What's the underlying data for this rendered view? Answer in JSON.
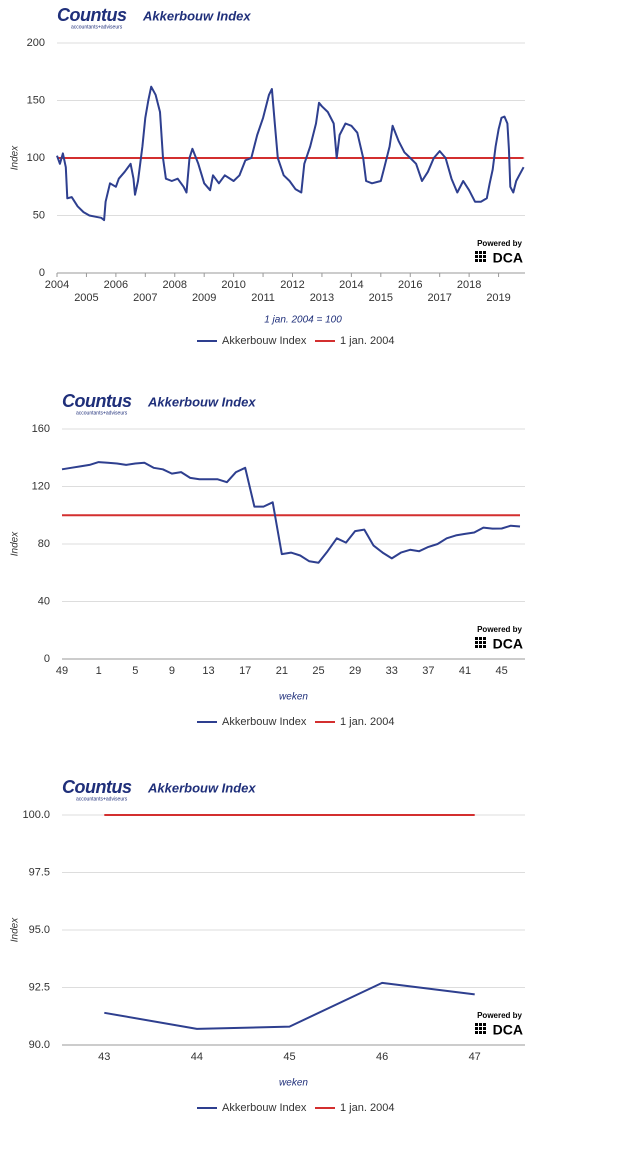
{
  "chart_data": [
    {
      "type": "line",
      "logo": "Countus",
      "logo_sub": "accountants+adviseurs",
      "title": "Akkerbouw Index",
      "powered_by": "Powered by",
      "brand": "DCA",
      "y_label": "Index",
      "x_label": "1 jan. 2004 = 100",
      "xlim": [
        2004,
        2020
      ],
      "xticks": [
        2004,
        2005,
        2006,
        2007,
        2008,
        2009,
        2010,
        2011,
        2012,
        2013,
        2014,
        2015,
        2016,
        2017,
        2018,
        2019
      ],
      "ylim": [
        0,
        200
      ],
      "yticks": [
        0,
        50,
        100,
        150,
        200
      ],
      "grid": true,
      "x": [
        2004.0,
        2004.1,
        2004.2,
        2004.3,
        2004.35,
        2004.5,
        2004.7,
        2004.9,
        2005.1,
        2005.3,
        2005.5,
        2005.6,
        2005.65,
        2005.8,
        2006.0,
        2006.1,
        2006.3,
        2006.5,
        2006.6,
        2006.65,
        2006.75,
        2006.9,
        2007.0,
        2007.1,
        2007.2,
        2007.35,
        2007.5,
        2007.6,
        2007.7,
        2007.9,
        2008.1,
        2008.3,
        2008.4,
        2008.5,
        2008.6,
        2008.8,
        2009.0,
        2009.2,
        2009.3,
        2009.5,
        2009.7,
        2010.0,
        2010.2,
        2010.4,
        2010.6,
        2010.8,
        2011.0,
        2011.2,
        2011.3,
        2011.4,
        2011.5,
        2011.7,
        2011.9,
        2012.1,
        2012.3,
        2012.4,
        2012.6,
        2012.8,
        2012.9,
        2013.0,
        2013.2,
        2013.4,
        2013.5,
        2013.6,
        2013.8,
        2014.0,
        2014.2,
        2014.4,
        2014.5,
        2014.7,
        2015.0,
        2015.1,
        2015.3,
        2015.4,
        2015.6,
        2015.8,
        2016.0,
        2016.2,
        2016.4,
        2016.6,
        2016.8,
        2017.0,
        2017.2,
        2017.4,
        2017.6,
        2017.8,
        2018.0,
        2018.2,
        2018.4,
        2018.6,
        2018.7,
        2018.8,
        2018.9,
        2019.0,
        2019.1,
        2019.2,
        2019.3,
        2019.35,
        2019.4,
        2019.5,
        2019.6,
        2019.7,
        2019.85
      ],
      "series": [
        {
          "name": "Akkerbouw Index",
          "color": "#2e3f8f",
          "values": [
            102,
            95,
            104,
            92,
            65,
            66,
            58,
            53,
            50,
            49,
            48,
            46,
            62,
            78,
            75,
            82,
            88,
            95,
            82,
            68,
            80,
            110,
            135,
            150,
            162,
            155,
            140,
            100,
            82,
            80,
            82,
            75,
            70,
            100,
            108,
            95,
            78,
            72,
            85,
            78,
            85,
            80,
            85,
            98,
            100,
            120,
            135,
            155,
            160,
            130,
            100,
            85,
            80,
            73,
            70,
            95,
            110,
            130,
            148,
            145,
            140,
            130,
            100,
            120,
            130,
            128,
            122,
            100,
            80,
            78,
            80,
            90,
            110,
            128,
            115,
            105,
            100,
            95,
            80,
            88,
            100,
            106,
            100,
            82,
            70,
            80,
            72,
            62,
            62,
            65,
            78,
            90,
            110,
            125,
            135,
            136,
            130,
            108,
            75,
            70,
            80,
            85,
            92
          ]
        }
      ],
      "reference_line": {
        "name": "1 jan. 2004",
        "color": "#d32f2f",
        "value": 100
      }
    },
    {
      "type": "line",
      "logo": "Countus",
      "logo_sub": "accountants+adviseurs",
      "title": "Akkerbouw Index",
      "powered_by": "Powered by",
      "brand": "DCA",
      "y_label": "Index",
      "x_label": "weken",
      "categories": [
        49,
        null,
        null,
        null,
        1,
        null,
        null,
        null,
        5,
        null,
        null,
        null,
        9,
        null,
        null,
        null,
        13,
        null,
        null,
        null,
        17,
        null,
        null,
        null,
        21,
        null,
        null,
        null,
        25,
        null,
        null,
        null,
        29,
        null,
        null,
        null,
        33,
        null,
        null,
        null,
        37,
        null,
        null,
        null,
        41,
        null,
        null,
        null,
        45,
        null,
        null
      ],
      "ylim": [
        0,
        160
      ],
      "yticks": [
        0,
        40,
        80,
        120,
        160
      ],
      "grid": true,
      "series": [
        {
          "name": "Akkerbouw Index",
          "color": "#2e3f8f",
          "values": [
            132,
            133,
            134,
            135,
            137,
            136.5,
            136,
            135,
            136,
            136.5,
            133,
            132,
            129,
            130,
            126,
            125,
            125,
            125,
            123,
            130,
            133,
            106,
            106,
            109,
            73,
            74,
            72,
            68,
            67,
            75,
            84,
            81,
            89,
            90,
            79,
            74,
            70,
            74,
            76,
            75,
            78,
            80,
            84,
            86,
            87,
            88,
            91.4,
            90.7,
            90.8,
            92.7,
            92.2
          ]
        }
      ],
      "reference_line": {
        "name": "1 jan. 2004",
        "color": "#d32f2f",
        "value": 100
      }
    },
    {
      "type": "line",
      "logo": "Countus",
      "logo_sub": "accountants+adviseurs",
      "title": "Akkerbouw Index",
      "powered_by": "Powered by",
      "brand": "DCA",
      "y_label": "Index",
      "x_label": "weken",
      "categories": [
        43,
        44,
        45,
        46,
        47
      ],
      "ylim": [
        90,
        100
      ],
      "yticks": [
        {
          "value": 90,
          "label": "90.0"
        },
        {
          "value": 92.5,
          "label": "92.5"
        },
        {
          "value": 95,
          "label": "95.0"
        },
        {
          "value": 97.5,
          "label": "97.5"
        },
        {
          "value": 100,
          "label": "100.0"
        }
      ],
      "grid": true,
      "series": [
        {
          "name": "Akkerbouw Index",
          "color": "#2e3f8f",
          "values": [
            91.4,
            90.7,
            90.8,
            92.7,
            92.2
          ]
        }
      ],
      "reference_line": {
        "name": "1 jan. 2004",
        "color": "#d32f2f",
        "value": 100
      }
    }
  ]
}
